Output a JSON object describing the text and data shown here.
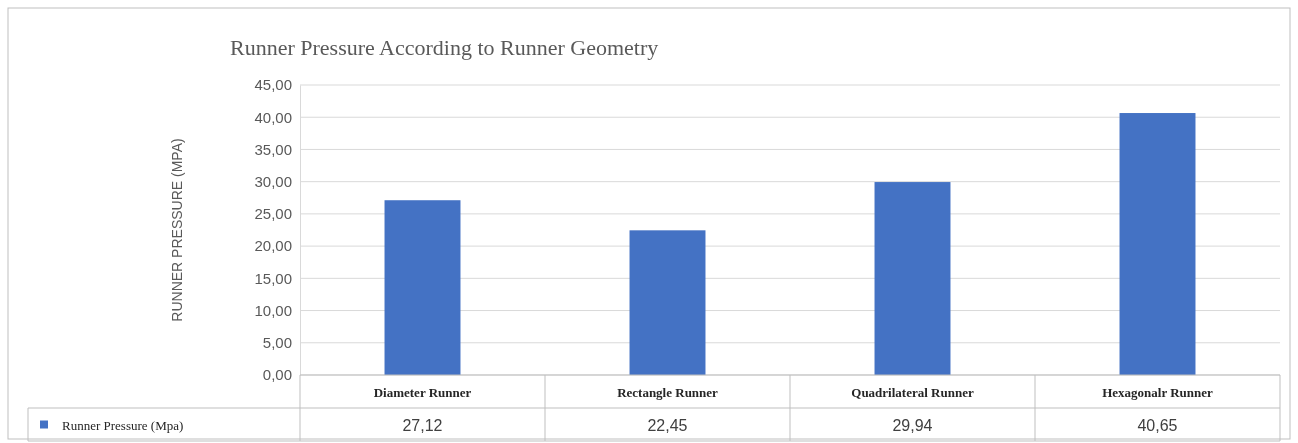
{
  "chart_data": {
    "type": "bar",
    "title": "Runner Pressure According to Runner Geometry",
    "ylabel": "RUNNER PRESSURE (MPA)",
    "categories": [
      "Diameter Runner",
      "Rectangle Runner",
      "Quadrilateral Runner",
      "Hexagonalr Runner"
    ],
    "series": [
      {
        "name": "Runner Pressure (Mpa)",
        "color": "#4472c4",
        "values": [
          27.12,
          22.45,
          29.94,
          40.65
        ],
        "value_labels": [
          "27,12",
          "22,45",
          "29,94",
          "40,65"
        ]
      }
    ],
    "ylim": [
      0,
      45
    ],
    "yticks": [
      {
        "value": 0,
        "label": "0,00"
      },
      {
        "value": 5,
        "label": "5,00"
      },
      {
        "value": 10,
        "label": "10,00"
      },
      {
        "value": 15,
        "label": "15,00"
      },
      {
        "value": 20,
        "label": "20,00"
      },
      {
        "value": 25,
        "label": "25,00"
      },
      {
        "value": 30,
        "label": "30,00"
      },
      {
        "value": 35,
        "label": "35,00"
      },
      {
        "value": 40,
        "label": "40,00"
      },
      {
        "value": 45,
        "label": "45,00"
      }
    ],
    "grid": true,
    "legend": "bottom left"
  }
}
